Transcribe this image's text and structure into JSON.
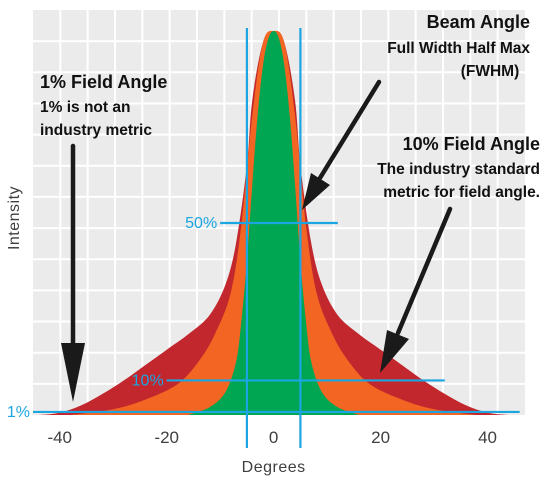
{
  "chart_data": {
    "type": "area",
    "xlabel": "Degrees",
    "ylabel": "Intensity",
    "xlim": [
      -45,
      47
    ],
    "ylim": [
      0,
      100
    ],
    "x_ticks": [
      -40,
      -20,
      0,
      20,
      40
    ],
    "x_tick_labels": [
      "-40",
      "-20",
      "0",
      "20",
      "40"
    ],
    "grid": true,
    "series": [
      {
        "color": "#c1272d",
        "x": [
          -44,
          -40,
          -36,
          -32,
          -28,
          -24,
          -20,
          -16,
          -12,
          -9,
          -7,
          -5,
          -4,
          -2,
          0,
          2,
          4,
          5,
          7,
          9,
          12,
          16,
          20,
          24,
          28,
          32,
          36,
          40,
          44
        ],
        "y": [
          0,
          0.6,
          2.5,
          5.5,
          9,
          13,
          17,
          21,
          26,
          34,
          45,
          65,
          82,
          97,
          100,
          97,
          82,
          65,
          45,
          34,
          26,
          21,
          17,
          13,
          9,
          5.5,
          2.5,
          0.6,
          0
        ]
      },
      {
        "color": "#f26522",
        "x": [
          -38,
          -30,
          -24,
          -18,
          -14,
          -11,
          -8,
          -6,
          -4,
          -2,
          0,
          2,
          4,
          6,
          8,
          11,
          14,
          18,
          24,
          30,
          38
        ],
        "y": [
          0,
          1.5,
          4,
          8,
          14,
          21,
          32,
          50,
          78,
          97,
          100,
          97,
          78,
          50,
          32,
          21,
          14,
          8,
          4,
          1.5,
          0
        ]
      },
      {
        "color": "#00a651",
        "x": [
          -16,
          -12,
          -9,
          -7,
          -6,
          -5,
          -4,
          -3,
          -2,
          -1,
          0,
          1,
          2,
          3,
          4,
          5,
          6,
          7,
          9,
          12,
          16
        ],
        "y": [
          0,
          2,
          6,
          14,
          25,
          40,
          60,
          78,
          91,
          98,
          100,
          98,
          91,
          78,
          60,
          40,
          25,
          14,
          6,
          2,
          0
        ]
      }
    ],
    "reference_lines": {
      "vertical_x": [
        -5,
        5
      ],
      "horizontal": [
        {
          "label": "50%",
          "y": 50,
          "x_range": [
            -10,
            12
          ]
        },
        {
          "label": "10%",
          "y": 9,
          "x_range": [
            -20,
            32
          ]
        },
        {
          "label": "1%",
          "y": 0.8,
          "x_range": [
            -45,
            46
          ]
        }
      ],
      "color": "#1ba5e1"
    },
    "annotations": [
      {
        "title": "Beam Angle",
        "body": [
          "Full Width Half Max",
          "(FWHM)"
        ]
      },
      {
        "title": "1% Field Angle",
        "body": [
          "1% is not an",
          "industry metric"
        ]
      },
      {
        "title": "10% Field Angle",
        "body": [
          "The industry standard",
          "metric for field angle."
        ]
      }
    ]
  }
}
